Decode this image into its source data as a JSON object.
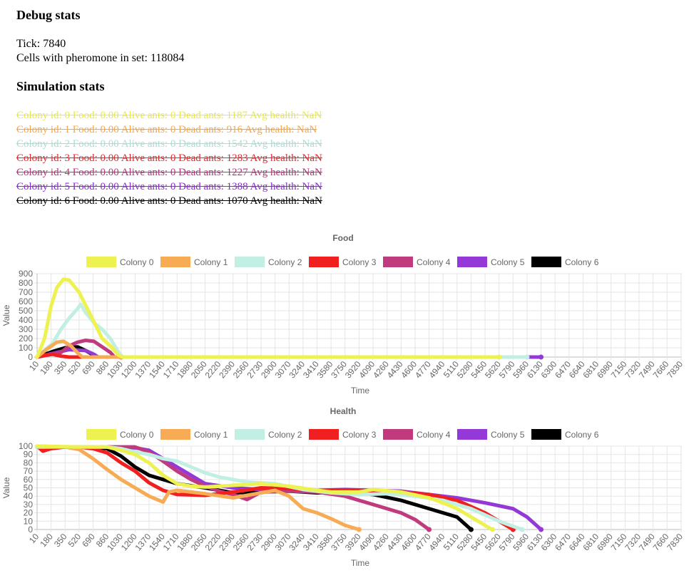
{
  "debug": {
    "heading": "Debug stats",
    "tick_label": "Tick: ",
    "tick": 7840,
    "cells_label": "Cells with pheromone in set: ",
    "cells": 118084
  },
  "simulation": {
    "heading": "Simulation stats",
    "colonies": [
      {
        "text": "Colony id: 0 Food: 0.00 Alive ants: 0 Dead ants: 1187 Avg health: NaN",
        "color": "#e8e84a"
      },
      {
        "text": "Colony id: 1 Food: 0.00 Alive ants: 0 Dead ants: 916 Avg health: NaN",
        "color": "#f5a64b"
      },
      {
        "text": "Colony id: 2 Food: 0.00 Alive ants: 0 Dead ants: 1542 Avg health: NaN",
        "color": "#a8ddd5"
      },
      {
        "text": "Colony id: 3 Food: 0.00 Alive ants: 0 Dead ants: 1283 Avg health: NaN",
        "color": "#e8272a"
      },
      {
        "text": "Colony id: 4 Food: 0.00 Alive ants: 0 Dead ants: 1227 Avg health: NaN",
        "color": "#b3347a"
      },
      {
        "text": "Colony id: 5 Food: 0.00 Alive ants: 0 Dead ants: 1388 Avg health: NaN",
        "color": "#8a2bd0"
      },
      {
        "text": "Colony id: 6 Food: 0.00 Alive ants: 0 Dead ants: 1070 Avg health: NaN",
        "color": "#000000"
      }
    ]
  },
  "chart_data": [
    {
      "type": "line",
      "title": "Food",
      "xlabel": "Time",
      "ylabel": "Value",
      "ylim": [
        0,
        900
      ],
      "yticks": [
        0,
        100,
        200,
        300,
        400,
        500,
        600,
        700,
        800,
        900
      ],
      "xlim": [
        10,
        7840
      ],
      "xticks": [
        10,
        180,
        350,
        520,
        690,
        860,
        1030,
        1200,
        1370,
        1540,
        1710,
        1880,
        2050,
        2220,
        2390,
        2560,
        2730,
        2900,
        3070,
        3240,
        3410,
        3580,
        3750,
        3920,
        4090,
        4260,
        4430,
        4600,
        4770,
        4940,
        5110,
        5280,
        5450,
        5620,
        5790,
        5960,
        6130,
        6300,
        6470,
        6640,
        6810,
        6980,
        7150,
        7320,
        7490,
        7660,
        7830
      ],
      "grid": true,
      "legend": "top",
      "series": [
        {
          "name": "Colony 0",
          "color": "#eef250",
          "points": [
            [
              10,
              0
            ],
            [
              100,
              200
            ],
            [
              180,
              550
            ],
            [
              250,
              750
            ],
            [
              330,
              840
            ],
            [
              400,
              830
            ],
            [
              520,
              700
            ],
            [
              690,
              400
            ],
            [
              800,
              200
            ],
            [
              900,
              120
            ],
            [
              1000,
              20
            ],
            [
              1050,
              0
            ],
            [
              5620,
              0
            ]
          ]
        },
        {
          "name": "Colony 1",
          "color": "#f7ab55",
          "points": [
            [
              10,
              0
            ],
            [
              120,
              80
            ],
            [
              250,
              160
            ],
            [
              330,
              170
            ],
            [
              420,
              120
            ],
            [
              520,
              30
            ],
            [
              560,
              0
            ],
            [
              1030,
              0
            ]
          ]
        },
        {
          "name": "Colony 2",
          "color": "#c1efe3",
          "points": [
            [
              10,
              0
            ],
            [
              200,
              150
            ],
            [
              300,
              300
            ],
            [
              400,
              420
            ],
            [
              500,
              520
            ],
            [
              540,
              570
            ],
            [
              600,
              480
            ],
            [
              700,
              370
            ],
            [
              800,
              300
            ],
            [
              900,
              200
            ],
            [
              1000,
              50
            ],
            [
              1050,
              0
            ],
            [
              5960,
              0
            ]
          ]
        },
        {
          "name": "Colony 3",
          "color": "#f02020",
          "points": [
            [
              10,
              0
            ],
            [
              100,
              20
            ],
            [
              200,
              30
            ],
            [
              300,
              10
            ],
            [
              400,
              0
            ],
            [
              1030,
              0
            ]
          ]
        },
        {
          "name": "Colony 4",
          "color": "#c03a7e",
          "points": [
            [
              10,
              0
            ],
            [
              300,
              50
            ],
            [
              400,
              120
            ],
            [
              500,
              160
            ],
            [
              600,
              180
            ],
            [
              700,
              170
            ],
            [
              800,
              110
            ],
            [
              900,
              50
            ],
            [
              950,
              0
            ],
            [
              1030,
              0
            ]
          ]
        },
        {
          "name": "Colony 5",
          "color": "#9438d8",
          "points": [
            [
              10,
              0
            ],
            [
              200,
              40
            ],
            [
              400,
              80
            ],
            [
              600,
              70
            ],
            [
              700,
              30
            ],
            [
              750,
              0
            ],
            [
              6130,
              0
            ]
          ]
        },
        {
          "name": "Colony 6",
          "color": "#000000",
          "points": [
            [
              10,
              0
            ],
            [
              200,
              60
            ],
            [
              350,
              100
            ],
            [
              500,
              110
            ],
            [
              600,
              70
            ],
            [
              700,
              20
            ],
            [
              750,
              0
            ],
            [
              1030,
              0
            ]
          ]
        }
      ]
    },
    {
      "type": "line",
      "title": "Health",
      "xlabel": "Time",
      "ylabel": "Value",
      "ylim": [
        0,
        100
      ],
      "yticks": [
        0,
        10,
        20,
        30,
        40,
        50,
        60,
        70,
        80,
        90,
        100
      ],
      "xlim": [
        10,
        7840
      ],
      "xticks": [
        10,
        180,
        350,
        520,
        690,
        860,
        1030,
        1200,
        1370,
        1540,
        1710,
        1880,
        2050,
        2220,
        2390,
        2560,
        2730,
        2900,
        3070,
        3240,
        3410,
        3580,
        3750,
        3920,
        4090,
        4260,
        4430,
        4600,
        4770,
        4940,
        5110,
        5280,
        5450,
        5620,
        5790,
        5960,
        6130,
        6300,
        6470,
        6640,
        6810,
        6980,
        7150,
        7320,
        7490,
        7660,
        7830
      ],
      "grid": true,
      "legend": "top",
      "series": [
        {
          "name": "Colony 0",
          "color": "#eef250",
          "points": [
            [
              10,
              100
            ],
            [
              500,
              99
            ],
            [
              860,
              99
            ],
            [
              1030,
              95
            ],
            [
              1200,
              90
            ],
            [
              1370,
              80
            ],
            [
              1540,
              65
            ],
            [
              1710,
              55
            ],
            [
              1880,
              52
            ],
            [
              2050,
              51
            ],
            [
              2390,
              53
            ],
            [
              2730,
              55
            ],
            [
              3070,
              52
            ],
            [
              3410,
              47
            ],
            [
              3580,
              45
            ],
            [
              3920,
              45
            ],
            [
              4090,
              48
            ],
            [
              4430,
              45
            ],
            [
              4770,
              38
            ],
            [
              4940,
              32
            ],
            [
              5110,
              25
            ],
            [
              5280,
              15
            ],
            [
              5450,
              5
            ],
            [
              5540,
              0
            ]
          ]
        },
        {
          "name": "Colony 1",
          "color": "#f7ab55",
          "points": [
            [
              10,
              100
            ],
            [
              350,
              99
            ],
            [
              520,
              96
            ],
            [
              690,
              85
            ],
            [
              860,
              72
            ],
            [
              1030,
              60
            ],
            [
              1200,
              50
            ],
            [
              1370,
              40
            ],
            [
              1540,
              33
            ],
            [
              1610,
              45
            ],
            [
              1710,
              47
            ],
            [
              2050,
              43
            ],
            [
              2390,
              38
            ],
            [
              2730,
              44
            ],
            [
              2900,
              47
            ],
            [
              3070,
              40
            ],
            [
              3240,
              25
            ],
            [
              3410,
              20
            ],
            [
              3580,
              13
            ],
            [
              3750,
              5
            ],
            [
              3920,
              0
            ]
          ]
        },
        {
          "name": "Colony 2",
          "color": "#c1efe3",
          "points": [
            [
              10,
              99
            ],
            [
              690,
              99
            ],
            [
              860,
              99
            ],
            [
              1030,
              97
            ],
            [
              1200,
              93
            ],
            [
              1370,
              90
            ],
            [
              1540,
              85
            ],
            [
              1710,
              82
            ],
            [
              1880,
              75
            ],
            [
              2050,
              68
            ],
            [
              2220,
              63
            ],
            [
              2390,
              60
            ],
            [
              2560,
              57
            ],
            [
              2900,
              55
            ],
            [
              3240,
              48
            ],
            [
              3580,
              44
            ],
            [
              3920,
              42
            ],
            [
              4260,
              43
            ],
            [
              4600,
              40
            ],
            [
              4940,
              35
            ],
            [
              5280,
              25
            ],
            [
              5620,
              10
            ],
            [
              5900,
              0
            ]
          ]
        },
        {
          "name": "Colony 3",
          "color": "#f02020",
          "points": [
            [
              10,
              100
            ],
            [
              80,
              94
            ],
            [
              180,
              97
            ],
            [
              350,
              99
            ],
            [
              520,
              99
            ],
            [
              690,
              97
            ],
            [
              860,
              92
            ],
            [
              1030,
              80
            ],
            [
              1200,
              70
            ],
            [
              1370,
              56
            ],
            [
              1540,
              47
            ],
            [
              1710,
              42
            ],
            [
              2050,
              41
            ],
            [
              2390,
              45
            ],
            [
              2730,
              50
            ],
            [
              3070,
              49
            ],
            [
              3410,
              47
            ],
            [
              3750,
              47
            ],
            [
              4090,
              46
            ],
            [
              4430,
              45
            ],
            [
              4770,
              42
            ],
            [
              5110,
              35
            ],
            [
              5450,
              20
            ],
            [
              5620,
              10
            ],
            [
              5790,
              0
            ]
          ]
        },
        {
          "name": "Colony 4",
          "color": "#c03a7e",
          "points": [
            [
              10,
              99
            ],
            [
              520,
              99
            ],
            [
              860,
              99
            ],
            [
              1200,
              99
            ],
            [
              1370,
              93
            ],
            [
              1540,
              82
            ],
            [
              1710,
              70
            ],
            [
              1880,
              60
            ],
            [
              2050,
              52
            ],
            [
              2220,
              46
            ],
            [
              2390,
              42
            ],
            [
              2560,
              36
            ],
            [
              2730,
              45
            ],
            [
              3070,
              46
            ],
            [
              3410,
              45
            ],
            [
              3750,
              40
            ],
            [
              4090,
              30
            ],
            [
              4430,
              20
            ],
            [
              4600,
              12
            ],
            [
              4770,
              0
            ]
          ]
        },
        {
          "name": "Colony 5",
          "color": "#9438d8",
          "points": [
            [
              10,
              99
            ],
            [
              690,
              99
            ],
            [
              1200,
              98
            ],
            [
              1370,
              95
            ],
            [
              1540,
              85
            ],
            [
              1710,
              75
            ],
            [
              1880,
              65
            ],
            [
              2050,
              55
            ],
            [
              2390,
              50
            ],
            [
              2730,
              48
            ],
            [
              3070,
              47
            ],
            [
              3410,
              47
            ],
            [
              3750,
              48
            ],
            [
              4090,
              47
            ],
            [
              4430,
              46
            ],
            [
              4770,
              42
            ],
            [
              5110,
              38
            ],
            [
              5450,
              32
            ],
            [
              5790,
              25
            ],
            [
              5960,
              15
            ],
            [
              6130,
              0
            ]
          ]
        },
        {
          "name": "Colony 6",
          "color": "#000000",
          "points": [
            [
              10,
              99
            ],
            [
              350,
              99
            ],
            [
              690,
              99
            ],
            [
              860,
              97
            ],
            [
              1030,
              88
            ],
            [
              1200,
              75
            ],
            [
              1370,
              65
            ],
            [
              1540,
              60
            ],
            [
              1710,
              55
            ],
            [
              2050,
              50
            ],
            [
              2390,
              44
            ],
            [
              2730,
              45
            ],
            [
              3070,
              46
            ],
            [
              3410,
              44
            ],
            [
              3750,
              45
            ],
            [
              4090,
              42
            ],
            [
              4430,
              35
            ],
            [
              4770,
              25
            ],
            [
              5110,
              15
            ],
            [
              5280,
              0
            ]
          ]
        }
      ]
    }
  ]
}
